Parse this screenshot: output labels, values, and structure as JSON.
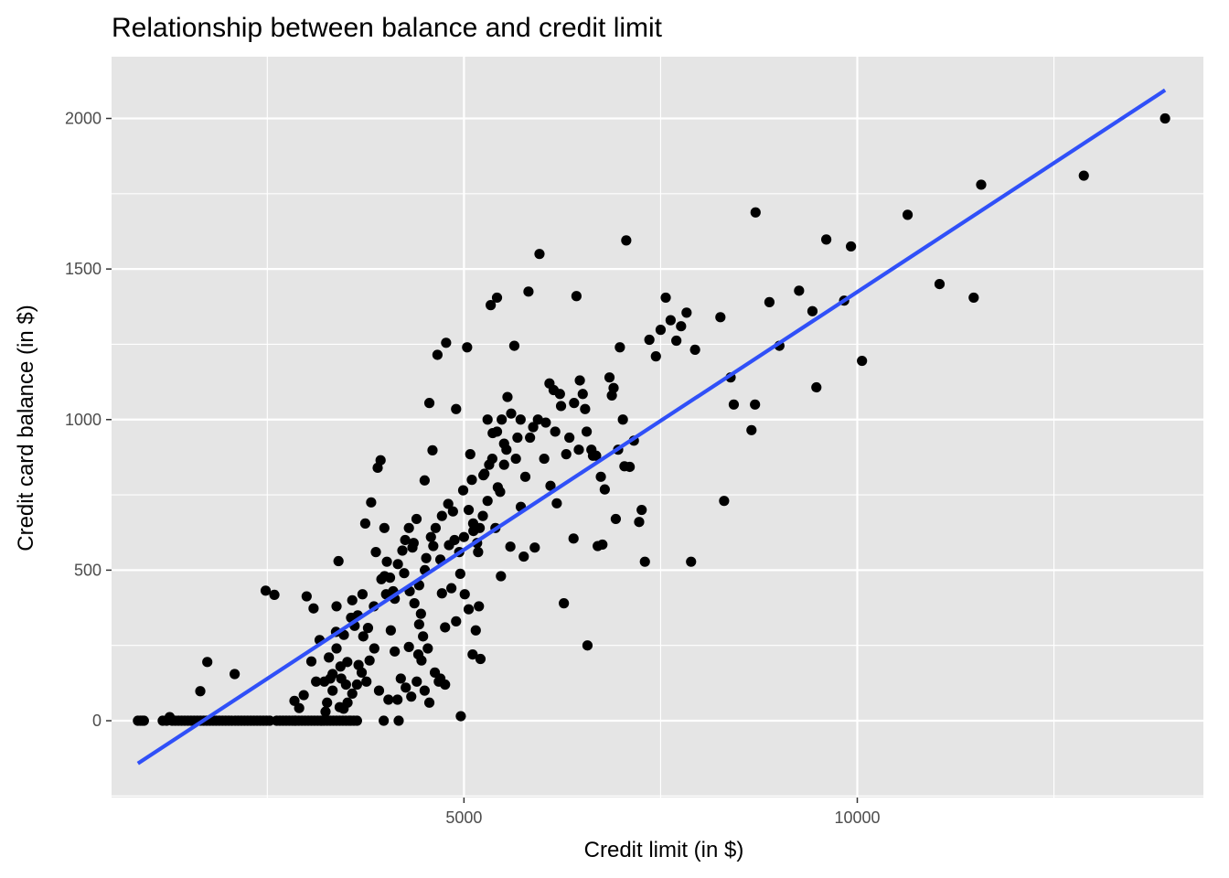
{
  "chart_data": {
    "type": "scatter",
    "title": "Relationship between balance and credit limit",
    "xlabel": "Credit limit (in $)",
    "ylabel": "Credit card balance (in $)",
    "xlim": [
      520,
      14400
    ],
    "ylim": [
      -255,
      2205
    ],
    "x_ticks": [
      5000,
      10000
    ],
    "x_minor_ticks": [
      2500,
      7500,
      12500
    ],
    "y_ticks": [
      0,
      500,
      1000,
      1500,
      2000
    ],
    "y_minor_ticks": [
      -250,
      250,
      750,
      1250,
      1750
    ],
    "grid": true,
    "legend": "none",
    "colors": {
      "panel": "#e5e5e5",
      "grid": "#ffffff",
      "point": "#000000",
      "fit_line": "#3050f8",
      "tick": "#4d4d4d"
    },
    "fit_line": {
      "x": [
        855,
        13913
      ],
      "y": [
        -142,
        2094
      ]
    },
    "points": [
      {
        "x": 855,
        "y": 0
      },
      {
        "x": 886,
        "y": 0
      },
      {
        "x": 909,
        "y": 0
      },
      {
        "x": 931,
        "y": 0
      },
      {
        "x": 1170,
        "y": 0
      },
      {
        "x": 1220,
        "y": 0
      },
      {
        "x": 1259,
        "y": 12
      },
      {
        "x": 1290,
        "y": 0
      },
      {
        "x": 1330,
        "y": 0
      },
      {
        "x": 1370,
        "y": 0
      },
      {
        "x": 1410,
        "y": 0
      },
      {
        "x": 1450,
        "y": 0
      },
      {
        "x": 1490,
        "y": 0
      },
      {
        "x": 1530,
        "y": 0
      },
      {
        "x": 1570,
        "y": 0
      },
      {
        "x": 1610,
        "y": 0
      },
      {
        "x": 1650,
        "y": 0
      },
      {
        "x": 1690,
        "y": 0
      },
      {
        "x": 1730,
        "y": 0
      },
      {
        "x": 1770,
        "y": 0
      },
      {
        "x": 1810,
        "y": 0
      },
      {
        "x": 1850,
        "y": 0
      },
      {
        "x": 1890,
        "y": 0
      },
      {
        "x": 1930,
        "y": 0
      },
      {
        "x": 1970,
        "y": 0
      },
      {
        "x": 2010,
        "y": 0
      },
      {
        "x": 2050,
        "y": 0
      },
      {
        "x": 2090,
        "y": 0
      },
      {
        "x": 2130,
        "y": 0
      },
      {
        "x": 2170,
        "y": 0
      },
      {
        "x": 2210,
        "y": 0
      },
      {
        "x": 2250,
        "y": 0
      },
      {
        "x": 2290,
        "y": 0
      },
      {
        "x": 2330,
        "y": 0
      },
      {
        "x": 2370,
        "y": 0
      },
      {
        "x": 2410,
        "y": 0
      },
      {
        "x": 2450,
        "y": 0
      },
      {
        "x": 2490,
        "y": 0
      },
      {
        "x": 2530,
        "y": 0
      },
      {
        "x": 2620,
        "y": 0
      },
      {
        "x": 2660,
        "y": 0
      },
      {
        "x": 2700,
        "y": 0
      },
      {
        "x": 2740,
        "y": 0
      },
      {
        "x": 2780,
        "y": 0
      },
      {
        "x": 2820,
        "y": 0
      },
      {
        "x": 2860,
        "y": 0
      },
      {
        "x": 2900,
        "y": 0
      },
      {
        "x": 2940,
        "y": 0
      },
      {
        "x": 2980,
        "y": 0
      },
      {
        "x": 3020,
        "y": 0
      },
      {
        "x": 3060,
        "y": 0
      },
      {
        "x": 3100,
        "y": 0
      },
      {
        "x": 3140,
        "y": 0
      },
      {
        "x": 3180,
        "y": 0
      },
      {
        "x": 3220,
        "y": 0
      },
      {
        "x": 3260,
        "y": 0
      },
      {
        "x": 3300,
        "y": 0
      },
      {
        "x": 3340,
        "y": 0
      },
      {
        "x": 3380,
        "y": 0
      },
      {
        "x": 3420,
        "y": 0
      },
      {
        "x": 3460,
        "y": 0
      },
      {
        "x": 3500,
        "y": 0
      },
      {
        "x": 3540,
        "y": 0
      },
      {
        "x": 1648,
        "y": 98
      },
      {
        "x": 1737,
        "y": 195
      },
      {
        "x": 2085,
        "y": 155
      },
      {
        "x": 2479,
        "y": 432
      },
      {
        "x": 2590,
        "y": 418
      },
      {
        "x": 2845,
        "y": 66
      },
      {
        "x": 2905,
        "y": 42
      },
      {
        "x": 2963,
        "y": 85
      },
      {
        "x": 3000,
        "y": 413
      },
      {
        "x": 3060,
        "y": 197
      },
      {
        "x": 3088,
        "y": 373
      },
      {
        "x": 3120,
        "y": 130
      },
      {
        "x": 3165,
        "y": 268
      },
      {
        "x": 3225,
        "y": 130
      },
      {
        "x": 3283,
        "y": 210
      },
      {
        "x": 3330,
        "y": 155
      },
      {
        "x": 3373,
        "y": 295
      },
      {
        "x": 3380,
        "y": 380
      },
      {
        "x": 3405,
        "y": 530
      },
      {
        "x": 3420,
        "y": 45
      },
      {
        "x": 3473,
        "y": 285
      },
      {
        "x": 3517,
        "y": 195
      },
      {
        "x": 3565,
        "y": 342
      },
      {
        "x": 3610,
        "y": 315
      },
      {
        "x": 3660,
        "y": 185
      },
      {
        "x": 3710,
        "y": 420
      },
      {
        "x": 3745,
        "y": 655
      },
      {
        "x": 3780,
        "y": 308
      },
      {
        "x": 3820,
        "y": 725
      },
      {
        "x": 3855,
        "y": 380
      },
      {
        "x": 3903,
        "y": 840
      },
      {
        "x": 3940,
        "y": 865
      },
      {
        "x": 3990,
        "y": 480
      },
      {
        "x": 3988,
        "y": 640
      },
      {
        "x": 4020,
        "y": 528
      },
      {
        "x": 4060,
        "y": 475
      },
      {
        "x": 4120,
        "y": 405
      },
      {
        "x": 4170,
        "y": 0
      },
      {
        "x": 4217,
        "y": 565
      },
      {
        "x": 4253,
        "y": 600
      },
      {
        "x": 4300,
        "y": 245
      },
      {
        "x": 4345,
        "y": 575
      },
      {
        "x": 4397,
        "y": 670
      },
      {
        "x": 4453,
        "y": 355
      },
      {
        "x": 4500,
        "y": 798
      },
      {
        "x": 4503,
        "y": 500
      },
      {
        "x": 4560,
        "y": 1055
      },
      {
        "x": 4610,
        "y": 580
      },
      {
        "x": 4600,
        "y": 898
      },
      {
        "x": 4663,
        "y": 1215
      },
      {
        "x": 4700,
        "y": 535
      },
      {
        "x": 4720,
        "y": 423
      },
      {
        "x": 4773,
        "y": 1255
      },
      {
        "x": 4810,
        "y": 583
      },
      {
        "x": 4860,
        "y": 695
      },
      {
        "x": 4900,
        "y": 1035
      },
      {
        "x": 4953,
        "y": 488
      },
      {
        "x": 4990,
        "y": 765
      },
      {
        "x": 5040,
        "y": 1240
      },
      {
        "x": 5080,
        "y": 885
      },
      {
        "x": 5117,
        "y": 655
      },
      {
        "x": 5167,
        "y": 590
      },
      {
        "x": 5210,
        "y": 205
      },
      {
        "x": 5247,
        "y": 815
      },
      {
        "x": 5300,
        "y": 1000
      },
      {
        "x": 5340,
        "y": 1380
      },
      {
        "x": 5365,
        "y": 955
      },
      {
        "x": 5420,
        "y": 1405
      },
      {
        "x": 5430,
        "y": 775
      },
      {
        "x": 5470,
        "y": 480
      },
      {
        "x": 5510,
        "y": 920
      },
      {
        "x": 5553,
        "y": 1075
      },
      {
        "x": 5590,
        "y": 578
      },
      {
        "x": 5640,
        "y": 1245
      },
      {
        "x": 5680,
        "y": 940
      },
      {
        "x": 5723,
        "y": 710
      },
      {
        "x": 5760,
        "y": 545
      },
      {
        "x": 5820,
        "y": 1425
      },
      {
        "x": 5880,
        "y": 975
      },
      {
        "x": 5900,
        "y": 575
      },
      {
        "x": 5960,
        "y": 1550
      },
      {
        "x": 6020,
        "y": 870
      },
      {
        "x": 6087,
        "y": 1120
      },
      {
        "x": 6100,
        "y": 780
      },
      {
        "x": 6140,
        "y": 1098
      },
      {
        "x": 6180,
        "y": 722
      },
      {
        "x": 6234,
        "y": 1045
      },
      {
        "x": 6270,
        "y": 390
      },
      {
        "x": 6300,
        "y": 885
      },
      {
        "x": 6393,
        "y": 605
      },
      {
        "x": 6430,
        "y": 1410
      },
      {
        "x": 6473,
        "y": 1130
      },
      {
        "x": 6510,
        "y": 1085
      },
      {
        "x": 6540,
        "y": 1035
      },
      {
        "x": 6570,
        "y": 250
      },
      {
        "x": 6640,
        "y": 880
      },
      {
        "x": 6700,
        "y": 580
      },
      {
        "x": 6760,
        "y": 585
      },
      {
        "x": 6790,
        "y": 768
      },
      {
        "x": 6850,
        "y": 1140
      },
      {
        "x": 6902,
        "y": 1105
      },
      {
        "x": 6930,
        "y": 670
      },
      {
        "x": 6982,
        "y": 1240
      },
      {
        "x": 7020,
        "y": 1000
      },
      {
        "x": 7063,
        "y": 1595
      },
      {
        "x": 7107,
        "y": 843
      },
      {
        "x": 7160,
        "y": 930
      },
      {
        "x": 7227,
        "y": 660
      },
      {
        "x": 7259,
        "y": 700
      },
      {
        "x": 7300,
        "y": 528
      },
      {
        "x": 7357,
        "y": 1265
      },
      {
        "x": 7440,
        "y": 1210
      },
      {
        "x": 7500,
        "y": 1298
      },
      {
        "x": 7565,
        "y": 1405
      },
      {
        "x": 7627,
        "y": 1330
      },
      {
        "x": 7700,
        "y": 1262
      },
      {
        "x": 7760,
        "y": 1310
      },
      {
        "x": 7830,
        "y": 1355
      },
      {
        "x": 7887,
        "y": 528
      },
      {
        "x": 7938,
        "y": 1232
      },
      {
        "x": 8260,
        "y": 1340
      },
      {
        "x": 8307,
        "y": 730
      },
      {
        "x": 8390,
        "y": 1140
      },
      {
        "x": 8430,
        "y": 1050
      },
      {
        "x": 8655,
        "y": 965
      },
      {
        "x": 8700,
        "y": 1050
      },
      {
        "x": 8707,
        "y": 1688
      },
      {
        "x": 8883,
        "y": 1390
      },
      {
        "x": 9010,
        "y": 1245
      },
      {
        "x": 9260,
        "y": 1428
      },
      {
        "x": 9430,
        "y": 1360
      },
      {
        "x": 9480,
        "y": 1107
      },
      {
        "x": 9606,
        "y": 1598
      },
      {
        "x": 9833,
        "y": 1395
      },
      {
        "x": 9920,
        "y": 1575
      },
      {
        "x": 10060,
        "y": 1195
      },
      {
        "x": 10640,
        "y": 1680
      },
      {
        "x": 11046,
        "y": 1450
      },
      {
        "x": 11480,
        "y": 1405
      },
      {
        "x": 11575,
        "y": 1780
      },
      {
        "x": 12880,
        "y": 1810
      },
      {
        "x": 13913,
        "y": 2000
      },
      {
        "x": 4155,
        "y": 70
      },
      {
        "x": 4197,
        "y": 140
      },
      {
        "x": 4260,
        "y": 110
      },
      {
        "x": 4330,
        "y": 80
      },
      {
        "x": 4400,
        "y": 130
      },
      {
        "x": 4460,
        "y": 200
      },
      {
        "x": 4500,
        "y": 100
      },
      {
        "x": 4560,
        "y": 60
      },
      {
        "x": 4630,
        "y": 160
      },
      {
        "x": 4680,
        "y": 130
      },
      {
        "x": 4760,
        "y": 310
      },
      {
        "x": 4840,
        "y": 440
      },
      {
        "x": 4900,
        "y": 330
      },
      {
        "x": 4960,
        "y": 15
      },
      {
        "x": 5010,
        "y": 420
      },
      {
        "x": 5060,
        "y": 370
      },
      {
        "x": 5110,
        "y": 220
      },
      {
        "x": 5150,
        "y": 300
      },
      {
        "x": 5190,
        "y": 380
      },
      {
        "x": 3800,
        "y": 200
      },
      {
        "x": 3860,
        "y": 240
      },
      {
        "x": 3920,
        "y": 100
      },
      {
        "x": 3980,
        "y": 0
      },
      {
        "x": 4040,
        "y": 70
      },
      {
        "x": 3700,
        "y": 160
      },
      {
        "x": 3640,
        "y": 120
      },
      {
        "x": 3580,
        "y": 90
      },
      {
        "x": 3520,
        "y": 60
      },
      {
        "x": 3470,
        "y": 40
      },
      {
        "x": 3430,
        "y": 180
      },
      {
        "x": 3330,
        "y": 100
      },
      {
        "x": 3260,
        "y": 60
      },
      {
        "x": 4100,
        "y": 430
      },
      {
        "x": 4160,
        "y": 520
      },
      {
        "x": 4240,
        "y": 490
      },
      {
        "x": 4310,
        "y": 430
      },
      {
        "x": 4370,
        "y": 390
      },
      {
        "x": 4430,
        "y": 450
      },
      {
        "x": 4520,
        "y": 540
      },
      {
        "x": 4580,
        "y": 610
      },
      {
        "x": 4640,
        "y": 640
      },
      {
        "x": 4720,
        "y": 680
      },
      {
        "x": 4800,
        "y": 720
      },
      {
        "x": 4880,
        "y": 600
      },
      {
        "x": 4940,
        "y": 560
      },
      {
        "x": 5000,
        "y": 610
      },
      {
        "x": 5060,
        "y": 700
      },
      {
        "x": 5120,
        "y": 630
      },
      {
        "x": 5180,
        "y": 560
      },
      {
        "x": 5240,
        "y": 680
      },
      {
        "x": 5300,
        "y": 730
      },
      {
        "x": 5360,
        "y": 870
      },
      {
        "x": 5420,
        "y": 960
      },
      {
        "x": 5480,
        "y": 1000
      },
      {
        "x": 5540,
        "y": 900
      },
      {
        "x": 5600,
        "y": 1020
      },
      {
        "x": 5660,
        "y": 870
      },
      {
        "x": 5720,
        "y": 1000
      },
      {
        "x": 5780,
        "y": 810
      },
      {
        "x": 5840,
        "y": 940
      },
      {
        "x": 5940,
        "y": 1000
      },
      {
        "x": 6040,
        "y": 990
      },
      {
        "x": 6160,
        "y": 960
      },
      {
        "x": 6220,
        "y": 1085
      },
      {
        "x": 6340,
        "y": 940
      },
      {
        "x": 6400,
        "y": 1055
      },
      {
        "x": 6460,
        "y": 900
      },
      {
        "x": 6560,
        "y": 960
      },
      {
        "x": 6620,
        "y": 900
      },
      {
        "x": 6680,
        "y": 880
      },
      {
        "x": 6740,
        "y": 810
      },
      {
        "x": 6880,
        "y": 1080
      },
      {
        "x": 6960,
        "y": 900
      },
      {
        "x": 7040,
        "y": 845
      },
      {
        "x": 5100,
        "y": 800
      },
      {
        "x": 5200,
        "y": 640
      },
      {
        "x": 5260,
        "y": 820
      },
      {
        "x": 5320,
        "y": 850
      },
      {
        "x": 5400,
        "y": 640
      },
      {
        "x": 5460,
        "y": 760
      },
      {
        "x": 5510,
        "y": 850
      },
      {
        "x": 4700,
        "y": 140
      },
      {
        "x": 4760,
        "y": 120
      },
      {
        "x": 4540,
        "y": 240
      },
      {
        "x": 4420,
        "y": 220
      },
      {
        "x": 4300,
        "y": 640
      },
      {
        "x": 4360,
        "y": 590
      },
      {
        "x": 4430,
        "y": 320
      },
      {
        "x": 4480,
        "y": 280
      },
      {
        "x": 3580,
        "y": 400
      },
      {
        "x": 3650,
        "y": 350
      },
      {
        "x": 3720,
        "y": 280
      },
      {
        "x": 3760,
        "y": 130
      },
      {
        "x": 3880,
        "y": 560
      },
      {
        "x": 3950,
        "y": 470
      },
      {
        "x": 4010,
        "y": 420
      },
      {
        "x": 4070,
        "y": 300
      },
      {
        "x": 4120,
        "y": 230
      },
      {
        "x": 3300,
        "y": 140
      },
      {
        "x": 3380,
        "y": 240
      },
      {
        "x": 3440,
        "y": 140
      },
      {
        "x": 3500,
        "y": 120
      },
      {
        "x": 3190,
        "y": 0
      },
      {
        "x": 3240,
        "y": 30
      },
      {
        "x": 3560,
        "y": 0
      },
      {
        "x": 3600,
        "y": 0
      },
      {
        "x": 3640,
        "y": 0
      },
      {
        "x": 2850,
        "y": 0
      }
    ]
  }
}
